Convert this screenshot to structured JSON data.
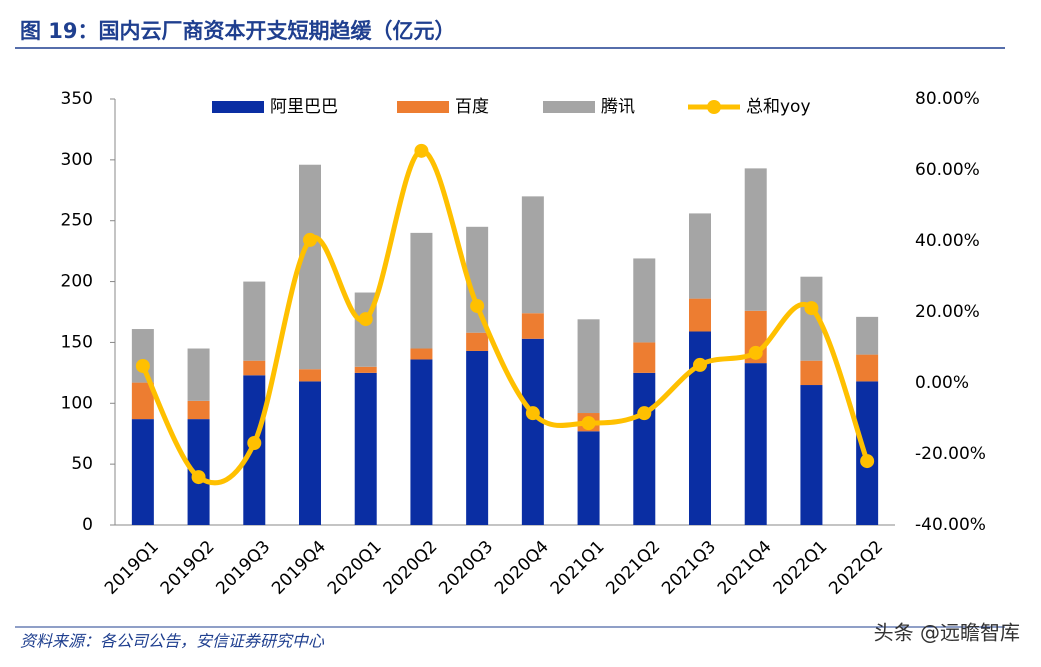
{
  "chart_data": {
    "type": "stacked-bar-line",
    "title": "图 19：国内云厂商资本开支短期趋缓（亿元）",
    "source": "资料来源：各公司公告，安信证券研究中心",
    "watermark": "头条 @远瞻智库",
    "categories": [
      "2019Q1",
      "2019Q2",
      "2019Q3",
      "2019Q4",
      "2020Q1",
      "2020Q2",
      "2020Q3",
      "2020Q4",
      "2021Q1",
      "2021Q2",
      "2021Q3",
      "2021Q4",
      "2022Q1",
      "2022Q2"
    ],
    "series": [
      {
        "name": "阿里巴巴",
        "color": "#0a2ea3",
        "values": [
          87,
          87,
          123,
          118,
          125,
          136,
          143,
          153,
          77,
          125,
          159,
          133,
          115,
          118
        ]
      },
      {
        "name": "百度",
        "color": "#ed7d31",
        "values": [
          30,
          15,
          12,
          10,
          5,
          9,
          15,
          21,
          15,
          25,
          27,
          43,
          20,
          22
        ]
      },
      {
        "name": "腾讯",
        "color": "#a5a5a5",
        "values": [
          44,
          43,
          65,
          168,
          61,
          95,
          87,
          96,
          77,
          69,
          70,
          117,
          69,
          31
        ]
      },
      {
        "name": "总和yoy",
        "color": "#ffc000",
        "axis": "y2",
        "values": [
          4.8,
          -26.5,
          -16.9,
          40.3,
          18,
          65.4,
          21.7,
          -8.5,
          -11.3,
          -8.5,
          5.1,
          8.5,
          21.1,
          -22
        ]
      }
    ],
    "ylim": [
      0,
      350
    ],
    "yticks": [
      0,
      50,
      100,
      150,
      200,
      250,
      300,
      350
    ],
    "y2lim": [
      -40,
      80
    ],
    "y2ticks": [
      {
        "value": -40,
        "label": "-40.00%"
      },
      {
        "value": -20,
        "label": "-20.00%"
      },
      {
        "value": 0,
        "label": "0.00%"
      },
      {
        "value": 20,
        "label": "20.00%"
      },
      {
        "value": 40,
        "label": "40.00%"
      },
      {
        "value": 60,
        "label": "60.00%"
      },
      {
        "value": 80,
        "label": "80.00%"
      }
    ],
    "legend": "top"
  }
}
